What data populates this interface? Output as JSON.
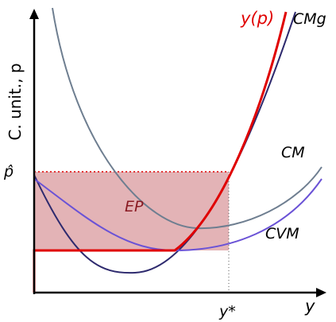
{
  "colors": {
    "axis": "#000000",
    "cm": "#6e7e90",
    "cmg": "#2e2a6e",
    "cvm": "#6a52d6",
    "supply": "#e00000",
    "surplus_fill": "#d99a9d",
    "guide": "#555555"
  },
  "labels": {
    "y_axis": "C. unit., p",
    "x_axis": "y",
    "p_hat": "p̂",
    "y_star": "y*",
    "supply": "y(p)",
    "cmg": "CMg",
    "cm": "CM",
    "cvm": "CVM",
    "surplus": "EP"
  }
}
